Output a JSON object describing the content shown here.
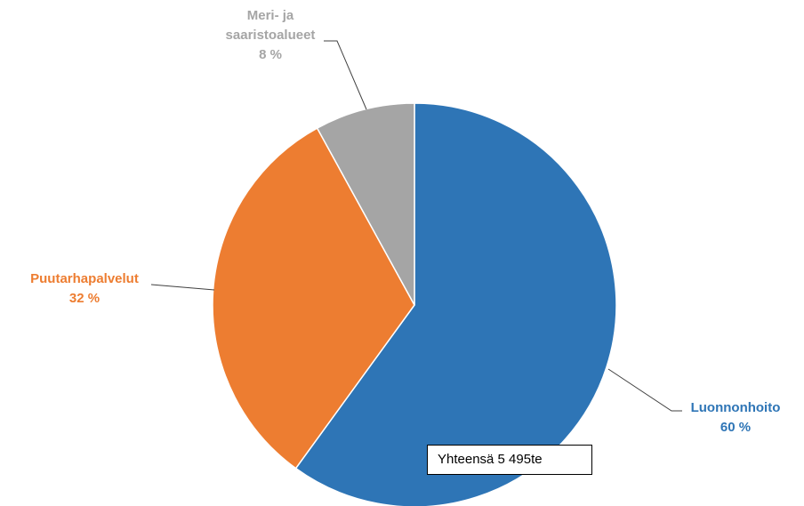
{
  "chart_data": {
    "type": "pie",
    "slices": [
      {
        "name": "Luonnonhoito",
        "value": 60,
        "value_label": "60 %",
        "color": "#2E75B6"
      },
      {
        "name": "Puutarhapalvelut",
        "value": 32,
        "value_label": "32 %",
        "color": "#ED7D31"
      },
      {
        "name_lines": [
          "Meri- ja",
          "saaristoalueet"
        ],
        "value": 8,
        "value_label": "8 %",
        "color": "#A5A5A5"
      }
    ],
    "start_angle": "top",
    "direction": "clockwise",
    "legend": "none",
    "annotation": "Yhteensä 5 495te"
  }
}
